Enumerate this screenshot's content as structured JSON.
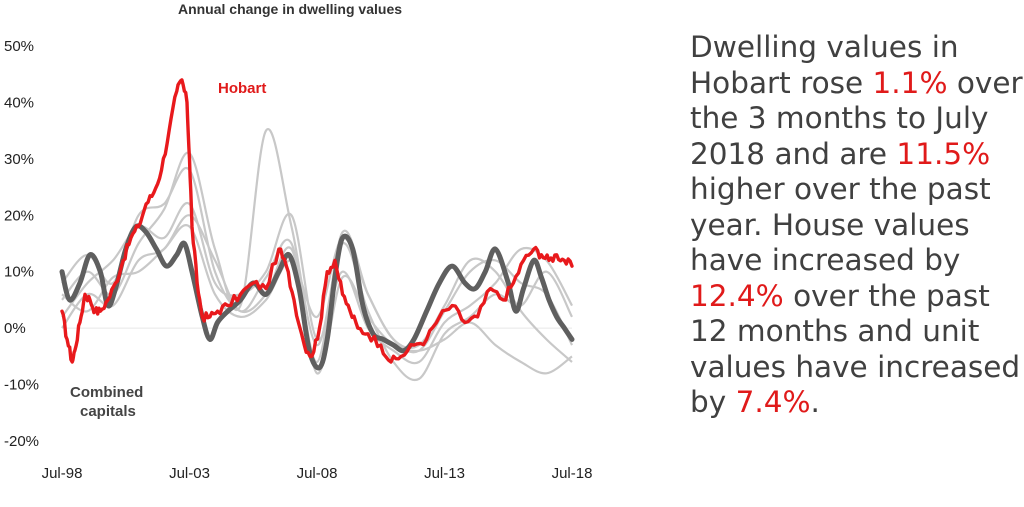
{
  "chart_data": {
    "type": "line",
    "title": "Annual change in dwelling values",
    "xlabel": "",
    "ylabel": "",
    "x_tick_labels": [
      "Jul-98",
      "Jul-03",
      "Jul-08",
      "Jul-13",
      "Jul-18"
    ],
    "x_ticks": [
      1998.5,
      2003.5,
      2008.5,
      2013.5,
      2018.5
    ],
    "xlim": [
      1998.5,
      2018.5
    ],
    "y_tick_labels": [
      "50%",
      "40%",
      "30%",
      "20%",
      "10%",
      "0%",
      "-10%",
      "-20%"
    ],
    "y_ticks": [
      50,
      40,
      30,
      20,
      10,
      0,
      -10,
      -20
    ],
    "ylim": [
      -20,
      50
    ],
    "grid": false,
    "annotations": [
      {
        "text": "Hobart",
        "color": "#e01a1a"
      },
      {
        "text": "Combined",
        "color": "#444444"
      },
      {
        "text": "capitals",
        "color": "#444444"
      }
    ],
    "colors": {
      "hobart": "#e8191c",
      "combined": "#5f5f5f",
      "other": "#c8c8c8"
    },
    "series": [
      {
        "role": "hobart",
        "x": [
          1998.5,
          1998.7,
          1998.9,
          1999.0,
          1999.2,
          1999.4,
          1999.6,
          1999.8,
          2000.0,
          2000.3,
          2000.6,
          2000.9,
          2001.2,
          2001.5,
          2001.8,
          2002.1,
          2002.4,
          2002.7,
          2003.0,
          2003.2,
          2003.4,
          2003.5,
          2003.6,
          2003.8,
          2004.0,
          2004.3,
          2004.6,
          2005.0,
          2005.5,
          2006.0,
          2006.5,
          2007.0,
          2007.3,
          2007.6,
          2008.0,
          2008.3,
          2008.6,
          2008.9,
          2009.2,
          2009.5,
          2009.8,
          2010.1,
          2010.5,
          2011.0,
          2011.4,
          2011.8,
          2012.3,
          2012.8,
          2013.3,
          2013.8,
          2014.3,
          2014.8,
          2015.3,
          2015.8,
          2016.2,
          2016.6,
          2017.0,
          2017.3,
          2017.6,
          2017.9,
          2018.2,
          2018.5
        ],
        "values": [
          3,
          -2,
          -6,
          -4,
          1,
          6,
          5,
          3,
          3,
          5,
          8,
          12,
          16,
          18,
          22,
          24,
          28,
          35,
          42,
          44,
          40,
          30,
          18,
          8,
          2,
          2,
          3,
          4,
          6,
          8,
          7,
          14,
          11,
          5,
          -3,
          -5,
          0,
          10,
          12,
          6,
          3,
          0,
          -1,
          -3,
          -6,
          -5,
          -3,
          -2,
          2,
          4,
          1,
          2,
          7,
          5,
          8,
          12,
          14,
          13,
          12,
          13,
          12,
          11
        ]
      },
      {
        "role": "combined",
        "name": "Combined capitals",
        "x": [
          1998.5,
          1998.8,
          1999.2,
          1999.6,
          2000.0,
          2000.3,
          2000.6,
          2001.0,
          2001.4,
          2001.8,
          2002.2,
          2002.6,
          2003.0,
          2003.3,
          2003.6,
          2004.0,
          2004.3,
          2004.6,
          2005.0,
          2005.5,
          2006.0,
          2006.5,
          2007.0,
          2007.4,
          2007.8,
          2008.2,
          2008.6,
          2008.9,
          2009.2,
          2009.5,
          2009.9,
          2010.3,
          2010.7,
          2011.1,
          2011.5,
          2011.9,
          2012.3,
          2012.8,
          2013.3,
          2013.8,
          2014.3,
          2014.7,
          2015.1,
          2015.5,
          2016.0,
          2016.3,
          2016.6,
          2017.0,
          2017.3,
          2017.6,
          2017.9,
          2018.2,
          2018.5
        ],
        "values": [
          10,
          5,
          8,
          13,
          10,
          4,
          7,
          14,
          18,
          17,
          14,
          11,
          13,
          15,
          10,
          2,
          -2,
          1,
          3,
          5,
          8,
          6,
          10,
          13,
          7,
          -4,
          -7,
          -2,
          9,
          16,
          14,
          4,
          -1,
          -2,
          -3,
          -4,
          -2,
          3,
          8,
          11,
          8,
          7,
          10,
          14,
          8,
          3,
          7,
          12,
          9,
          5,
          2,
          0,
          -2
        ]
      },
      {
        "role": "other",
        "x": [
          1998.5,
          1999.5,
          2000.5,
          2001.5,
          2002.5,
          2003.5,
          2004.5,
          2005.5,
          2006.5,
          2007.5,
          2008.5,
          2009.5,
          2010.5,
          2011.5,
          2012.5,
          2013.5,
          2014.5,
          2015.5,
          2016.5,
          2017.5,
          2018.5
        ],
        "values": [
          8,
          13,
          8,
          20,
          22,
          28,
          10,
          3,
          6,
          14,
          -6,
          17,
          6,
          -2,
          -4,
          3,
          10,
          12,
          8,
          6,
          -3
        ]
      },
      {
        "role": "other",
        "x": [
          1998.5,
          1999.5,
          2000.5,
          2001.5,
          2002.5,
          2003.5,
          2004.5,
          2005.5,
          2006.5,
          2007.5,
          2008.5,
          2009.5,
          2010.5,
          2011.5,
          2012.5,
          2013.5,
          2014.5,
          2015.5,
          2016.5,
          2017.5,
          2018.5
        ],
        "values": [
          5,
          10,
          6,
          15,
          21,
          31,
          14,
          4,
          35,
          18,
          -3,
          15,
          3,
          -6,
          -9,
          -1,
          2,
          6,
          4,
          10,
          2
        ]
      },
      {
        "role": "other",
        "x": [
          1998.5,
          1999.5,
          2000.5,
          2001.5,
          2002.5,
          2003.5,
          2004.5,
          2005.5,
          2006.5,
          2007.5,
          2008.5,
          2009.5,
          2010.5,
          2011.5,
          2012.5,
          2013.5,
          2014.5,
          2015.5,
          2016.5,
          2017.5,
          2018.5
        ],
        "values": [
          2,
          8,
          12,
          18,
          16,
          22,
          8,
          6,
          10,
          20,
          -2,
          10,
          0,
          -4,
          -6,
          1,
          4,
          8,
          14,
          12,
          4
        ]
      },
      {
        "role": "other",
        "x": [
          1998.5,
          1999.5,
          2000.5,
          2001.5,
          2002.5,
          2003.5,
          2004.5,
          2005.5,
          2006.5,
          2007.5,
          2008.5,
          2009.5,
          2010.5,
          2011.5,
          2012.5,
          2013.5,
          2014.5,
          2015.5,
          2016.5,
          2017.5,
          2018.5
        ],
        "values": [
          6,
          3,
          9,
          10,
          14,
          18,
          6,
          2,
          5,
          12,
          2,
          16,
          6,
          -2,
          -3,
          4,
          12,
          10,
          3,
          -2,
          -6
        ]
      },
      {
        "role": "other",
        "x": [
          1998.5,
          1999.5,
          2000.5,
          2001.5,
          2002.5,
          2003.5,
          2004.5,
          2005.5,
          2006.5,
          2007.5,
          2008.5,
          2009.5,
          2010.5,
          2011.5,
          2012.5,
          2013.5,
          2014.5,
          2015.5,
          2016.5,
          2017.5,
          2018.5
        ],
        "values": [
          0,
          6,
          4,
          12,
          14,
          20,
          12,
          3,
          9,
          15,
          -8,
          9,
          2,
          -3,
          -4,
          -2,
          1,
          -3,
          -6,
          -8,
          -5
        ]
      }
    ]
  },
  "commentary": {
    "t1": "Dwelling values in Hobart rose ",
    "h1": "1.1%",
    "t2": " over the 3 months to July 2018 and are ",
    "h2": "11.5%",
    "t3": " higher over the past year. House values have increased by ",
    "h3": "12.4%",
    "t4": " over the past 12 months and unit values have increased by ",
    "h4": "7.4%",
    "t5": "."
  }
}
